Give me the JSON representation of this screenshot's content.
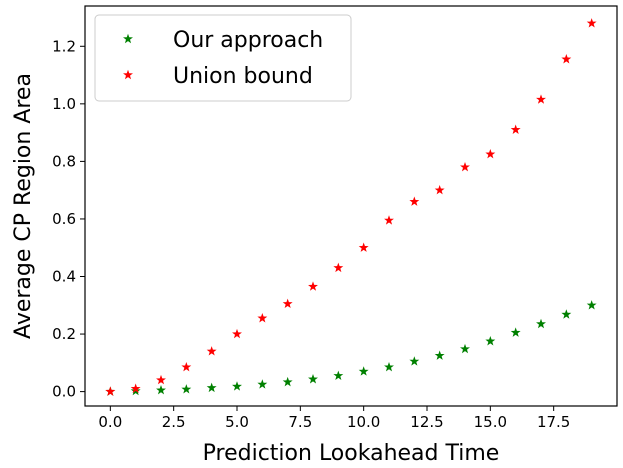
{
  "chart_data": {
    "type": "scatter",
    "xlabel": "Prediction Lookahead Time",
    "ylabel": "Average CP Region Area",
    "xlim": [
      -1.0,
      20.0
    ],
    "ylim": [
      -0.05,
      1.34
    ],
    "xticks": [
      0.0,
      2.5,
      5.0,
      7.5,
      10.0,
      12.5,
      15.0,
      17.5
    ],
    "xtick_labels": [
      "0.0",
      "2.5",
      "5.0",
      "7.5",
      "10.0",
      "12.5",
      "15.0",
      "17.5"
    ],
    "yticks": [
      0.0,
      0.2,
      0.4,
      0.6,
      0.8,
      1.0,
      1.2
    ],
    "ytick_labels": [
      "0.0",
      "0.2",
      "0.4",
      "0.6",
      "0.8",
      "1.0",
      "1.2"
    ],
    "grid": false,
    "legend_position": "top-left",
    "marker": "star",
    "series": [
      {
        "name": "Our approach",
        "color": "#008000",
        "x": [
          0,
          1,
          2,
          3,
          4,
          5,
          6,
          7,
          8,
          9,
          10,
          11,
          12,
          13,
          14,
          15,
          16,
          17,
          18,
          19
        ],
        "y": [
          0.0,
          0.002,
          0.005,
          0.008,
          0.013,
          0.018,
          0.025,
          0.033,
          0.043,
          0.055,
          0.07,
          0.085,
          0.105,
          0.125,
          0.148,
          0.175,
          0.205,
          0.235,
          0.268,
          0.3
        ]
      },
      {
        "name": "Union bound",
        "color": "#ff0000",
        "x": [
          0,
          1,
          2,
          3,
          4,
          5,
          6,
          7,
          8,
          9,
          10,
          11,
          12,
          13,
          14,
          15,
          16,
          17,
          18,
          19
        ],
        "y": [
          0.0,
          0.01,
          0.04,
          0.085,
          0.14,
          0.2,
          0.255,
          0.305,
          0.365,
          0.43,
          0.5,
          0.595,
          0.66,
          0.7,
          0.78,
          0.825,
          0.91,
          1.015,
          1.155,
          1.28
        ]
      }
    ]
  }
}
